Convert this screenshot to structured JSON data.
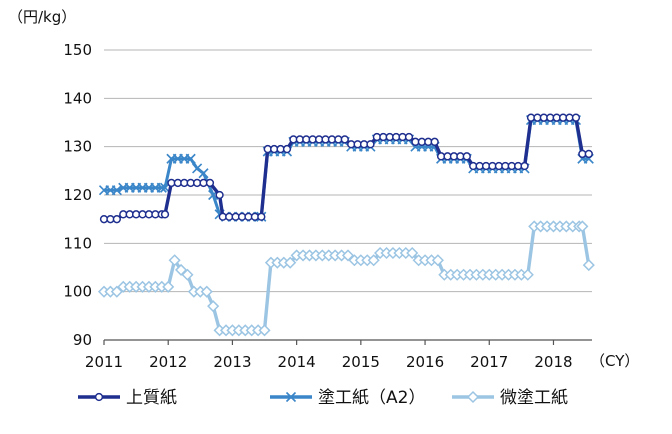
{
  "chart_data": {
    "type": "line",
    "y_unit_label": "（円/kg）",
    "x_unit_label": "（CY）",
    "ylim": [
      90,
      150
    ],
    "y_ticks": [
      "90",
      "100",
      "110",
      "120",
      "130",
      "140",
      "150"
    ],
    "xlim": [
      2011,
      2018.6
    ],
    "x_ticks": [
      "2011",
      "2012",
      "2013",
      "2014",
      "2015",
      "2016",
      "2017",
      "2018"
    ],
    "grid": "horizontal",
    "legend_position": "bottom",
    "colors": {
      "series1": "#1f2f8f",
      "series2": "#3a86c8",
      "series3": "#9cc5e3"
    },
    "series": [
      {
        "name": "上質紙",
        "marker": "circle",
        "points": [
          [
            2011.0,
            115
          ],
          [
            2011.1,
            115
          ],
          [
            2011.2,
            115
          ],
          [
            2011.3,
            116
          ],
          [
            2011.4,
            116
          ],
          [
            2011.5,
            116
          ],
          [
            2011.6,
            116
          ],
          [
            2011.7,
            116
          ],
          [
            2011.8,
            116
          ],
          [
            2011.9,
            116
          ],
          [
            2011.95,
            116
          ],
          [
            2012.05,
            122.5
          ],
          [
            2012.15,
            122.5
          ],
          [
            2012.25,
            122.5
          ],
          [
            2012.35,
            122.5
          ],
          [
            2012.45,
            122.5
          ],
          [
            2012.55,
            122.5
          ],
          [
            2012.65,
            122.5
          ],
          [
            2012.8,
            120
          ],
          [
            2012.85,
            115.5
          ],
          [
            2012.95,
            115.5
          ],
          [
            2013.05,
            115.5
          ],
          [
            2013.15,
            115.5
          ],
          [
            2013.25,
            115.5
          ],
          [
            2013.35,
            115.5
          ],
          [
            2013.45,
            115.5
          ],
          [
            2013.55,
            129.5
          ],
          [
            2013.65,
            129.5
          ],
          [
            2013.75,
            129.5
          ],
          [
            2013.85,
            129.5
          ],
          [
            2013.95,
            131.5
          ],
          [
            2014.05,
            131.5
          ],
          [
            2014.15,
            131.5
          ],
          [
            2014.25,
            131.5
          ],
          [
            2014.35,
            131.5
          ],
          [
            2014.45,
            131.5
          ],
          [
            2014.55,
            131.5
          ],
          [
            2014.65,
            131.5
          ],
          [
            2014.75,
            131.5
          ],
          [
            2014.85,
            130.5
          ],
          [
            2014.95,
            130.5
          ],
          [
            2015.05,
            130.5
          ],
          [
            2015.15,
            130.5
          ],
          [
            2015.25,
            132
          ],
          [
            2015.35,
            132
          ],
          [
            2015.45,
            132
          ],
          [
            2015.55,
            132
          ],
          [
            2015.65,
            132
          ],
          [
            2015.75,
            132
          ],
          [
            2015.85,
            131
          ],
          [
            2015.95,
            131
          ],
          [
            2016.05,
            131
          ],
          [
            2016.15,
            131
          ],
          [
            2016.25,
            128
          ],
          [
            2016.35,
            128
          ],
          [
            2016.45,
            128
          ],
          [
            2016.55,
            128
          ],
          [
            2016.65,
            128
          ],
          [
            2016.75,
            126
          ],
          [
            2016.85,
            126
          ],
          [
            2016.95,
            126
          ],
          [
            2017.05,
            126
          ],
          [
            2017.15,
            126
          ],
          [
            2017.25,
            126
          ],
          [
            2017.35,
            126
          ],
          [
            2017.45,
            126
          ],
          [
            2017.55,
            126
          ],
          [
            2017.65,
            136
          ],
          [
            2017.75,
            136
          ],
          [
            2017.85,
            136
          ],
          [
            2017.95,
            136
          ],
          [
            2018.05,
            136
          ],
          [
            2018.15,
            136
          ],
          [
            2018.25,
            136
          ],
          [
            2018.35,
            136
          ],
          [
            2018.45,
            128.5
          ],
          [
            2018.55,
            128.5
          ]
        ]
      },
      {
        "name": "塗工紙（A2）",
        "marker": "x",
        "points": [
          [
            2011.0,
            121
          ],
          [
            2011.1,
            121
          ],
          [
            2011.2,
            121
          ],
          [
            2011.3,
            121.5
          ],
          [
            2011.4,
            121.5
          ],
          [
            2011.5,
            121.5
          ],
          [
            2011.6,
            121.5
          ],
          [
            2011.7,
            121.5
          ],
          [
            2011.8,
            121.5
          ],
          [
            2011.9,
            121.5
          ],
          [
            2011.95,
            121.5
          ],
          [
            2012.05,
            127.5
          ],
          [
            2012.15,
            127.5
          ],
          [
            2012.25,
            127.5
          ],
          [
            2012.35,
            127.5
          ],
          [
            2012.45,
            125.5
          ],
          [
            2012.55,
            124.5
          ],
          [
            2012.7,
            120
          ],
          [
            2012.8,
            116
          ],
          [
            2012.9,
            115.5
          ],
          [
            2013.0,
            115.5
          ],
          [
            2013.1,
            115.5
          ],
          [
            2013.2,
            115.5
          ],
          [
            2013.3,
            115.5
          ],
          [
            2013.4,
            115.5
          ],
          [
            2013.45,
            115.5
          ],
          [
            2013.55,
            129
          ],
          [
            2013.65,
            129
          ],
          [
            2013.75,
            129
          ],
          [
            2013.85,
            129
          ],
          [
            2013.95,
            131
          ],
          [
            2014.05,
            131
          ],
          [
            2014.15,
            131
          ],
          [
            2014.25,
            131
          ],
          [
            2014.35,
            131
          ],
          [
            2014.45,
            131
          ],
          [
            2014.55,
            131
          ],
          [
            2014.65,
            131
          ],
          [
            2014.75,
            131
          ],
          [
            2014.85,
            130
          ],
          [
            2014.95,
            130
          ],
          [
            2015.05,
            130
          ],
          [
            2015.15,
            130
          ],
          [
            2015.25,
            131.5
          ],
          [
            2015.35,
            131.5
          ],
          [
            2015.45,
            131.5
          ],
          [
            2015.55,
            131.5
          ],
          [
            2015.65,
            131.5
          ],
          [
            2015.75,
            131.5
          ],
          [
            2015.85,
            130
          ],
          [
            2015.95,
            130
          ],
          [
            2016.05,
            130
          ],
          [
            2016.15,
            130
          ],
          [
            2016.25,
            127.5
          ],
          [
            2016.35,
            127.5
          ],
          [
            2016.45,
            127.5
          ],
          [
            2016.55,
            127.5
          ],
          [
            2016.65,
            127.5
          ],
          [
            2016.75,
            125.5
          ],
          [
            2016.85,
            125.5
          ],
          [
            2016.95,
            125.5
          ],
          [
            2017.05,
            125.5
          ],
          [
            2017.15,
            125.5
          ],
          [
            2017.25,
            125.5
          ],
          [
            2017.35,
            125.5
          ],
          [
            2017.45,
            125.5
          ],
          [
            2017.55,
            125.5
          ],
          [
            2017.65,
            135.5
          ],
          [
            2017.75,
            135.5
          ],
          [
            2017.85,
            135.5
          ],
          [
            2017.95,
            135.5
          ],
          [
            2018.05,
            135.5
          ],
          [
            2018.15,
            135.5
          ],
          [
            2018.25,
            135.5
          ],
          [
            2018.35,
            135.5
          ],
          [
            2018.45,
            127.5
          ],
          [
            2018.55,
            127.5
          ]
        ]
      },
      {
        "name": "微塗工紙",
        "marker": "diamond",
        "points": [
          [
            2011.0,
            100
          ],
          [
            2011.1,
            100
          ],
          [
            2011.2,
            100
          ],
          [
            2011.3,
            101
          ],
          [
            2011.4,
            101
          ],
          [
            2011.5,
            101
          ],
          [
            2011.6,
            101
          ],
          [
            2011.7,
            101
          ],
          [
            2011.8,
            101
          ],
          [
            2011.9,
            101
          ],
          [
            2012.0,
            101
          ],
          [
            2012.1,
            106.5
          ],
          [
            2012.2,
            104.5
          ],
          [
            2012.3,
            103.5
          ],
          [
            2012.4,
            100
          ],
          [
            2012.5,
            100
          ],
          [
            2012.6,
            100
          ],
          [
            2012.7,
            97
          ],
          [
            2012.8,
            92
          ],
          [
            2012.9,
            92
          ],
          [
            2013.0,
            92
          ],
          [
            2013.1,
            92
          ],
          [
            2013.2,
            92
          ],
          [
            2013.3,
            92
          ],
          [
            2013.4,
            92
          ],
          [
            2013.5,
            92
          ],
          [
            2013.6,
            106
          ],
          [
            2013.7,
            106
          ],
          [
            2013.8,
            106
          ],
          [
            2013.9,
            106
          ],
          [
            2014.0,
            107.5
          ],
          [
            2014.1,
            107.5
          ],
          [
            2014.2,
            107.5
          ],
          [
            2014.3,
            107.5
          ],
          [
            2014.4,
            107.5
          ],
          [
            2014.5,
            107.5
          ],
          [
            2014.6,
            107.5
          ],
          [
            2014.7,
            107.5
          ],
          [
            2014.8,
            107.5
          ],
          [
            2014.9,
            106.5
          ],
          [
            2015.0,
            106.5
          ],
          [
            2015.1,
            106.5
          ],
          [
            2015.2,
            106.5
          ],
          [
            2015.3,
            108
          ],
          [
            2015.4,
            108
          ],
          [
            2015.5,
            108
          ],
          [
            2015.6,
            108
          ],
          [
            2015.7,
            108
          ],
          [
            2015.8,
            108
          ],
          [
            2015.9,
            106.5
          ],
          [
            2016.0,
            106.5
          ],
          [
            2016.1,
            106.5
          ],
          [
            2016.2,
            106.5
          ],
          [
            2016.3,
            103.5
          ],
          [
            2016.4,
            103.5
          ],
          [
            2016.5,
            103.5
          ],
          [
            2016.6,
            103.5
          ],
          [
            2016.7,
            103.5
          ],
          [
            2016.8,
            103.5
          ],
          [
            2016.9,
            103.5
          ],
          [
            2017.0,
            103.5
          ],
          [
            2017.1,
            103.5
          ],
          [
            2017.2,
            103.5
          ],
          [
            2017.3,
            103.5
          ],
          [
            2017.4,
            103.5
          ],
          [
            2017.5,
            103.5
          ],
          [
            2017.6,
            103.5
          ],
          [
            2017.7,
            113.5
          ],
          [
            2017.8,
            113.5
          ],
          [
            2017.9,
            113.5
          ],
          [
            2018.0,
            113.5
          ],
          [
            2018.1,
            113.5
          ],
          [
            2018.2,
            113.5
          ],
          [
            2018.3,
            113.5
          ],
          [
            2018.4,
            113.5
          ],
          [
            2018.45,
            113.5
          ],
          [
            2018.55,
            105.5
          ]
        ]
      }
    ]
  }
}
